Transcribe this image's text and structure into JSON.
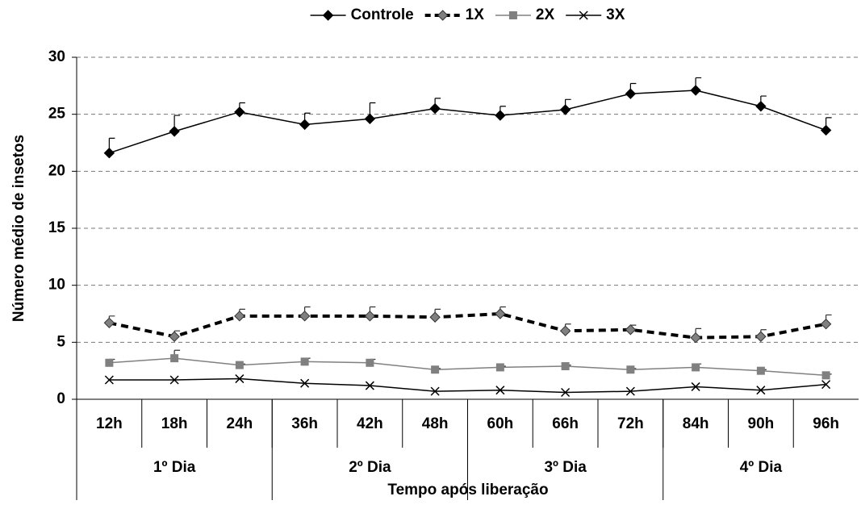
{
  "chart_data": {
    "type": "line",
    "y_label": "Número médio de insetos",
    "x_label": "Tempo após liberação",
    "categories": [
      "12h",
      "18h",
      "24h",
      "36h",
      "42h",
      "48h",
      "60h",
      "66h",
      "72h",
      "84h",
      "90h",
      "96h"
    ],
    "group_labels": [
      "1º Dia",
      "2º Dia",
      "3º Dia",
      "4º Dia"
    ],
    "series": [
      {
        "name": "Controle",
        "color": "#000000",
        "marker": "diamond",
        "line_style": "solid",
        "values": [
          21.6,
          23.5,
          25.2,
          24.1,
          24.6,
          25.5,
          24.9,
          25.4,
          26.8,
          27.1,
          25.7,
          23.6
        ],
        "errors": [
          1.3,
          1.4,
          0.8,
          1.0,
          1.4,
          0.9,
          0.8,
          0.9,
          0.9,
          1.1,
          0.9,
          1.1
        ]
      },
      {
        "name": "1X",
        "color": "#808080",
        "marker": "diamond",
        "line_style": "dashed",
        "values": [
          6.7,
          5.5,
          7.3,
          7.3,
          7.3,
          7.2,
          7.5,
          6.0,
          6.1,
          5.4,
          5.5,
          6.6
        ],
        "errors": [
          0.6,
          0.5,
          0.6,
          0.8,
          0.8,
          0.7,
          0.6,
          0.6,
          0.4,
          0.8,
          0.6,
          0.8
        ]
      },
      {
        "name": "2X",
        "color": "#808080",
        "marker": "square",
        "line_style": "solid",
        "values": [
          3.2,
          3.6,
          3.0,
          3.3,
          3.2,
          2.6,
          2.8,
          2.9,
          2.6,
          2.8,
          2.5,
          2.1
        ],
        "errors": [
          0.3,
          0.7,
          0.1,
          0.3,
          0.3,
          0.1,
          0.1,
          0.1,
          0.1,
          0.3,
          0.1,
          0.1
        ]
      },
      {
        "name": "3X",
        "color": "#000000",
        "marker": "x",
        "line_style": "solid",
        "values": [
          1.7,
          1.7,
          1.8,
          1.4,
          1.2,
          0.7,
          0.8,
          0.6,
          0.7,
          1.1,
          0.8,
          1.3
        ]
      }
    ],
    "ylim": [
      0,
      30
    ],
    "yticks": [
      0,
      5,
      10,
      15,
      20,
      25,
      30
    ],
    "grid": true
  }
}
